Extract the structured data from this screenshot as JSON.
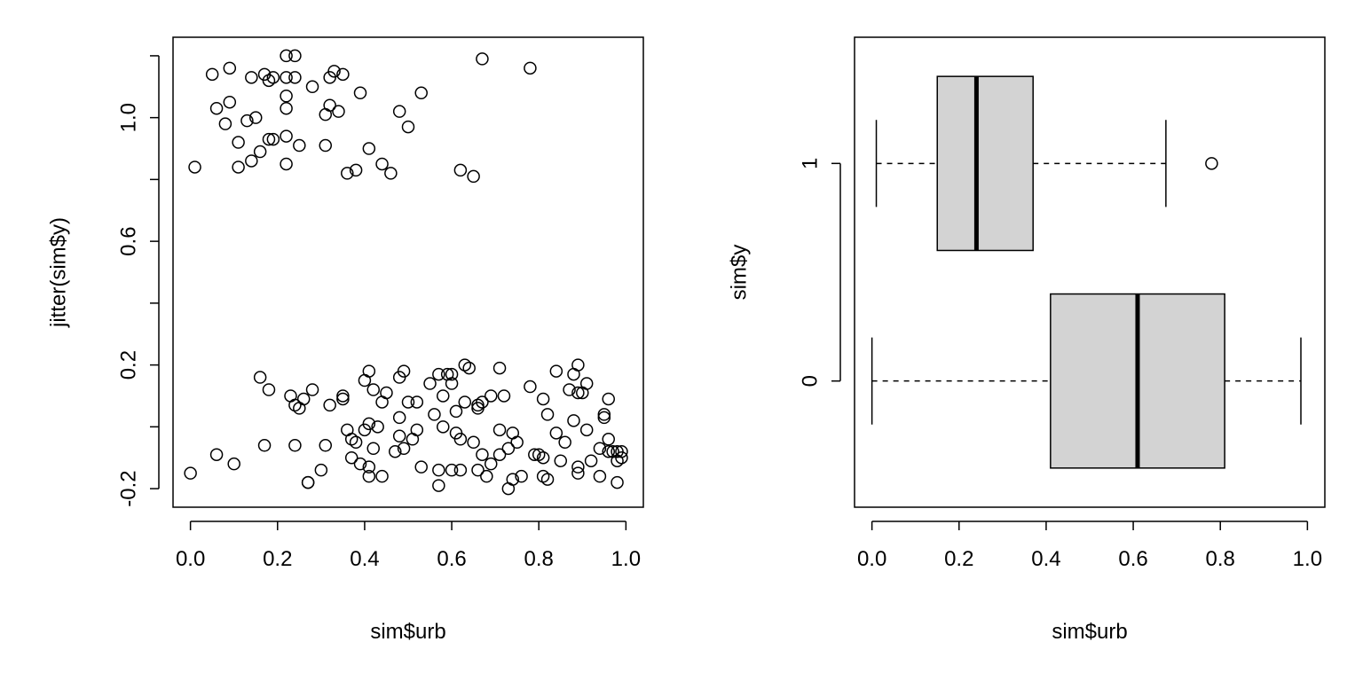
{
  "chart_data": [
    {
      "type": "scatter",
      "xlabel": "sim$urb",
      "ylabel": "jitter(sim$y)",
      "xlim": [
        -0.04,
        1.04
      ],
      "ylim": [
        -0.26,
        1.26
      ],
      "xticks": [
        "0.0",
        "0.2",
        "0.4",
        "0.6",
        "0.8",
        "1.0"
      ],
      "xtick_values": [
        0,
        0.2,
        0.4,
        0.6,
        0.8,
        1.0
      ],
      "yticks": [
        "-0.2",
        "0.2",
        "0.6",
        "1.0"
      ],
      "ytick_values": [
        -0.2,
        0.2,
        0.6,
        1.0
      ],
      "minor_ytick_values": [
        0.0,
        0.4,
        0.8,
        1.2
      ],
      "grid": false,
      "marker": "open-circle",
      "points": [
        [
          0.01,
          0.84
        ],
        [
          0.05,
          1.14
        ],
        [
          0.06,
          1.03
        ],
        [
          0.08,
          0.98
        ],
        [
          0.09,
          1.16
        ],
        [
          0.09,
          1.05
        ],
        [
          0.11,
          0.92
        ],
        [
          0.11,
          0.84
        ],
        [
          0.13,
          0.99
        ],
        [
          0.14,
          1.13
        ],
        [
          0.14,
          0.86
        ],
        [
          0.15,
          1.0
        ],
        [
          0.16,
          0.89
        ],
        [
          0.17,
          1.14
        ],
        [
          0.18,
          1.12
        ],
        [
          0.18,
          0.93
        ],
        [
          0.19,
          1.13
        ],
        [
          0.19,
          0.93
        ],
        [
          0.22,
          1.2
        ],
        [
          0.22,
          1.13
        ],
        [
          0.22,
          1.07
        ],
        [
          0.22,
          1.03
        ],
        [
          0.22,
          0.94
        ],
        [
          0.22,
          0.85
        ],
        [
          0.24,
          1.2
        ],
        [
          0.24,
          1.13
        ],
        [
          0.25,
          0.91
        ],
        [
          0.28,
          1.1
        ],
        [
          0.31,
          1.01
        ],
        [
          0.31,
          0.91
        ],
        [
          0.32,
          1.13
        ],
        [
          0.32,
          1.04
        ],
        [
          0.33,
          1.15
        ],
        [
          0.34,
          1.02
        ],
        [
          0.35,
          1.14
        ],
        [
          0.36,
          0.82
        ],
        [
          0.38,
          0.83
        ],
        [
          0.39,
          1.08
        ],
        [
          0.41,
          0.9
        ],
        [
          0.44,
          0.85
        ],
        [
          0.46,
          0.82
        ],
        [
          0.48,
          1.02
        ],
        [
          0.5,
          0.97
        ],
        [
          0.53,
          1.08
        ],
        [
          0.62,
          0.83
        ],
        [
          0.65,
          0.81
        ],
        [
          0.67,
          1.19
        ],
        [
          0.78,
          1.16
        ],
        [
          0.0,
          -0.15
        ],
        [
          0.06,
          -0.09
        ],
        [
          0.1,
          -0.12
        ],
        [
          0.16,
          0.16
        ],
        [
          0.17,
          -0.06
        ],
        [
          0.18,
          0.12
        ],
        [
          0.23,
          0.1
        ],
        [
          0.24,
          0.07
        ],
        [
          0.24,
          -0.06
        ],
        [
          0.25,
          0.06
        ],
        [
          0.26,
          0.09
        ],
        [
          0.27,
          -0.18
        ],
        [
          0.27,
          -0.18
        ],
        [
          0.28,
          0.12
        ],
        [
          0.3,
          -0.14
        ],
        [
          0.31,
          -0.06
        ],
        [
          0.32,
          0.07
        ],
        [
          0.35,
          0.1
        ],
        [
          0.35,
          0.09
        ],
        [
          0.36,
          -0.01
        ],
        [
          0.37,
          -0.04
        ],
        [
          0.37,
          -0.1
        ],
        [
          0.38,
          -0.05
        ],
        [
          0.39,
          -0.12
        ],
        [
          0.4,
          0.15
        ],
        [
          0.4,
          -0.01
        ],
        [
          0.41,
          0.18
        ],
        [
          0.41,
          0.01
        ],
        [
          0.41,
          -0.13
        ],
        [
          0.41,
          -0.16
        ],
        [
          0.42,
          0.12
        ],
        [
          0.42,
          -0.07
        ],
        [
          0.43,
          0.0
        ],
        [
          0.44,
          0.08
        ],
        [
          0.44,
          -0.16
        ],
        [
          0.45,
          0.11
        ],
        [
          0.47,
          -0.08
        ],
        [
          0.48,
          0.16
        ],
        [
          0.48,
          0.03
        ],
        [
          0.48,
          -0.03
        ],
        [
          0.49,
          0.18
        ],
        [
          0.49,
          -0.07
        ],
        [
          0.5,
          0.08
        ],
        [
          0.51,
          -0.04
        ],
        [
          0.52,
          0.08
        ],
        [
          0.52,
          -0.01
        ],
        [
          0.53,
          -0.13
        ],
        [
          0.55,
          0.14
        ],
        [
          0.56,
          0.04
        ],
        [
          0.57,
          0.17
        ],
        [
          0.57,
          -0.14
        ],
        [
          0.57,
          -0.19
        ],
        [
          0.58,
          0.1
        ],
        [
          0.58,
          0.0
        ],
        [
          0.59,
          0.17
        ],
        [
          0.6,
          0.14
        ],
        [
          0.6,
          0.17
        ],
        [
          0.6,
          -0.14
        ],
        [
          0.61,
          0.05
        ],
        [
          0.61,
          -0.02
        ],
        [
          0.62,
          -0.04
        ],
        [
          0.62,
          -0.14
        ],
        [
          0.63,
          0.2
        ],
        [
          0.63,
          0.08
        ],
        [
          0.64,
          0.19
        ],
        [
          0.65,
          -0.05
        ],
        [
          0.66,
          0.07
        ],
        [
          0.66,
          0.06
        ],
        [
          0.66,
          -0.14
        ],
        [
          0.67,
          0.08
        ],
        [
          0.67,
          -0.09
        ],
        [
          0.68,
          -0.16
        ],
        [
          0.69,
          0.1
        ],
        [
          0.69,
          -0.12
        ],
        [
          0.71,
          0.19
        ],
        [
          0.71,
          -0.01
        ],
        [
          0.71,
          -0.09
        ],
        [
          0.72,
          0.1
        ],
        [
          0.73,
          -0.07
        ],
        [
          0.73,
          -0.2
        ],
        [
          0.74,
          -0.02
        ],
        [
          0.74,
          -0.17
        ],
        [
          0.75,
          -0.05
        ],
        [
          0.76,
          -0.16
        ],
        [
          0.78,
          0.13
        ],
        [
          0.79,
          -0.09
        ],
        [
          0.8,
          -0.09
        ],
        [
          0.81,
          0.09
        ],
        [
          0.81,
          -0.1
        ],
        [
          0.81,
          -0.16
        ],
        [
          0.82,
          0.04
        ],
        [
          0.82,
          -0.17
        ],
        [
          0.84,
          0.18
        ],
        [
          0.84,
          -0.02
        ],
        [
          0.85,
          -0.11
        ],
        [
          0.86,
          -0.05
        ],
        [
          0.87,
          0.12
        ],
        [
          0.88,
          0.02
        ],
        [
          0.88,
          0.17
        ],
        [
          0.89,
          0.2
        ],
        [
          0.89,
          0.11
        ],
        [
          0.89,
          -0.13
        ],
        [
          0.89,
          -0.15
        ],
        [
          0.9,
          0.11
        ],
        [
          0.91,
          0.14
        ],
        [
          0.91,
          -0.01
        ],
        [
          0.92,
          -0.11
        ],
        [
          0.94,
          -0.07
        ],
        [
          0.94,
          -0.16
        ],
        [
          0.95,
          0.04
        ],
        [
          0.95,
          0.03
        ],
        [
          0.96,
          0.09
        ],
        [
          0.96,
          -0.04
        ],
        [
          0.96,
          -0.08
        ],
        [
          0.97,
          -0.08
        ],
        [
          0.98,
          -0.11
        ],
        [
          0.98,
          -0.18
        ],
        [
          0.98,
          -0.08
        ],
        [
          0.99,
          -0.08
        ],
        [
          0.99,
          -0.1
        ]
      ]
    },
    {
      "type": "boxplot",
      "orientation": "horizontal",
      "xlabel": "sim$urb",
      "ylabel": "sim$y",
      "xlim": [
        -0.04,
        1.04
      ],
      "ylim": [
        0.42,
        2.58
      ],
      "xticks": [
        "0.0",
        "0.2",
        "0.4",
        "0.6",
        "0.8",
        "1.0"
      ],
      "xtick_values": [
        0,
        0.2,
        0.4,
        0.6,
        0.8,
        1.0
      ],
      "grid": false,
      "fill": "#d3d3d3",
      "boxes": [
        {
          "label": "0",
          "whisker_low": 0.0,
          "q1": 0.41,
          "median": 0.61,
          "q3": 0.81,
          "whisker_high": 0.985,
          "outliers": []
        },
        {
          "label": "1",
          "whisker_low": 0.01,
          "q1": 0.15,
          "median": 0.24,
          "q3": 0.37,
          "whisker_high": 0.675,
          "outliers": [
            0.78
          ]
        }
      ]
    }
  ]
}
